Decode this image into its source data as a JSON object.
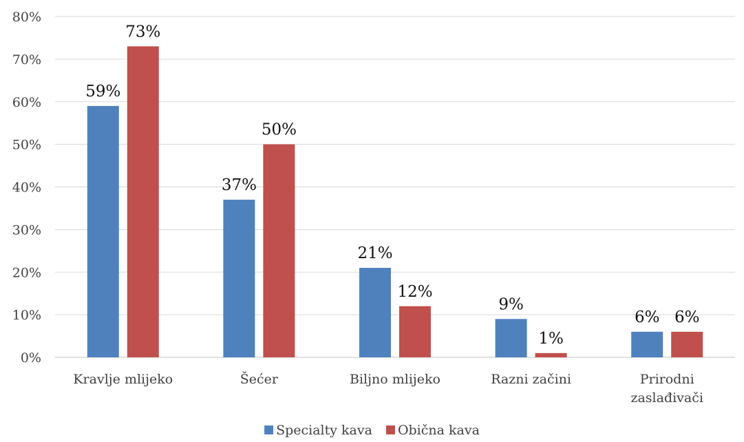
{
  "chart_data": {
    "type": "bar",
    "categories": [
      [
        "Kravlje mlijeko"
      ],
      [
        "Šećer"
      ],
      [
        "Biljno mlijeko"
      ],
      [
        "Razni začini"
      ],
      [
        "Prirodni",
        "zaslađivači"
      ]
    ],
    "series": [
      {
        "name": "Specialty kava",
        "color": "#4f81bd",
        "values": [
          59,
          37,
          21,
          9,
          6
        ],
        "labels": [
          "59%",
          "37%",
          "21%",
          "9%",
          "6%"
        ]
      },
      {
        "name": "Obična kava",
        "color": "#c0504d",
        "values": [
          73,
          50,
          12,
          1,
          6
        ],
        "labels": [
          "73%",
          "50%",
          "12%",
          "1%",
          "6%"
        ]
      }
    ],
    "y_ticks": [
      "0%",
      "10%",
      "20%",
      "30%",
      "40%",
      "50%",
      "60%",
      "70%",
      "80%"
    ],
    "ylim": [
      0,
      80
    ],
    "grid": true,
    "gridline_color": "#d9d9d9",
    "legend_position": "bottom"
  }
}
